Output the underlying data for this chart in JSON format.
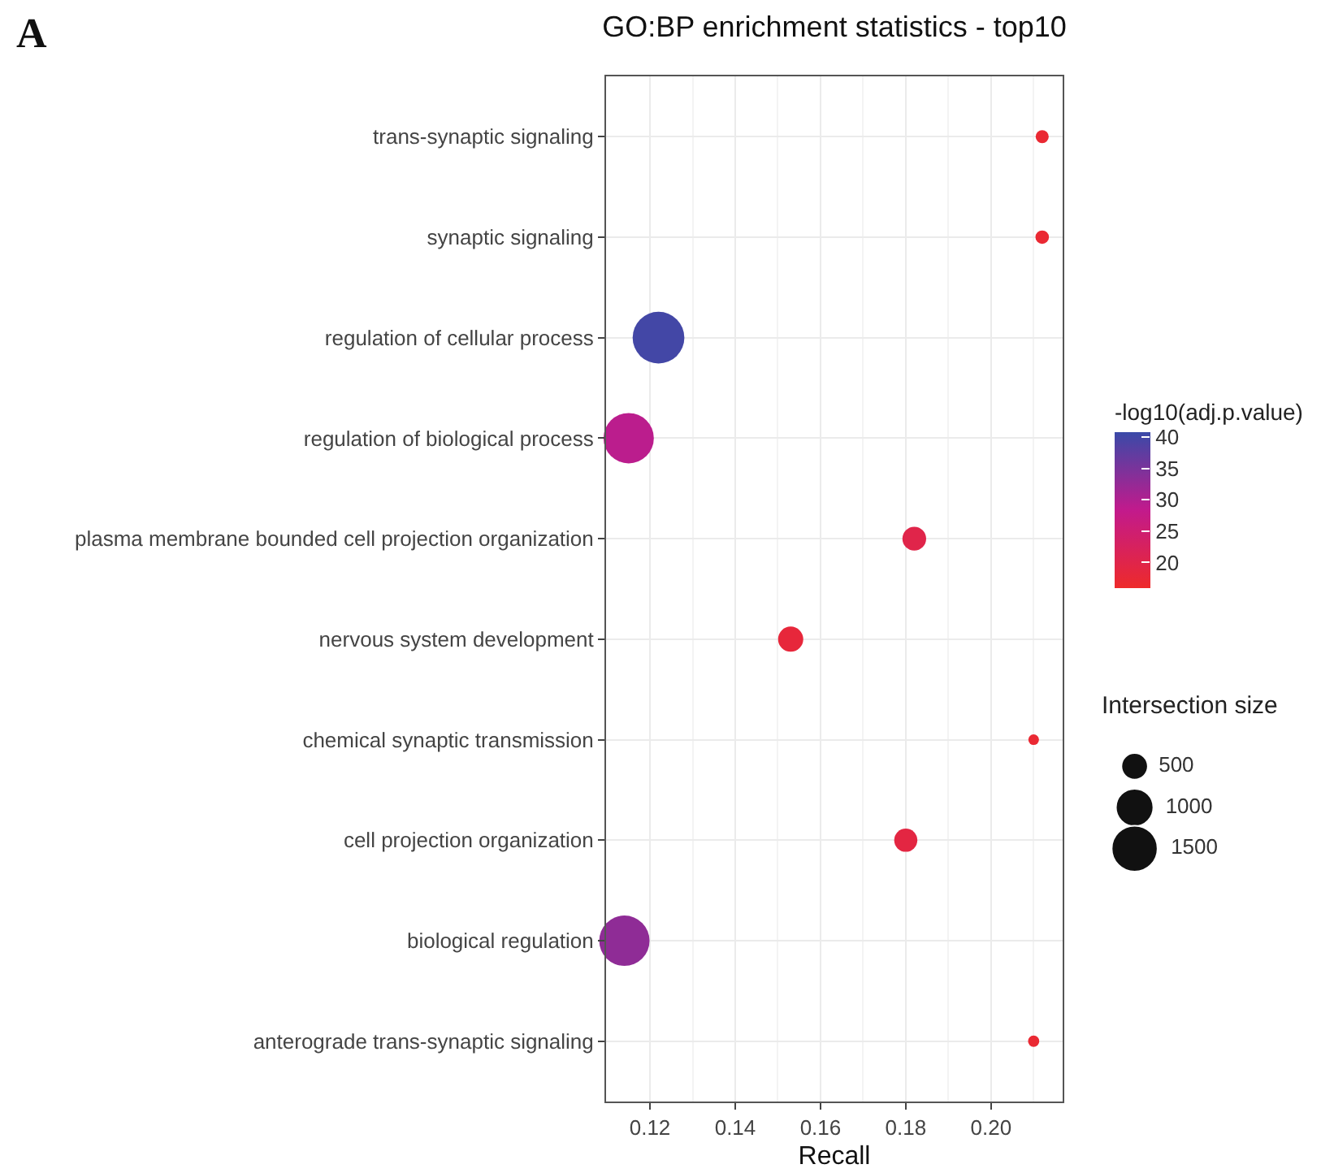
{
  "chart_data": {
    "type": "bubble",
    "title": "GO:BP enrichment statistics - top10",
    "xlabel": "Recall",
    "clabel": "-log10(adj.p.value)",
    "legend_title": "Intersection size",
    "annotations": [
      "A"
    ],
    "categories": [
      "trans-synaptic signaling",
      "synaptic signaling",
      "regulation of cellular process",
      "regulation of biological process",
      "plasma membrane bounded cell projection organization",
      "nervous system development",
      "chemical synaptic transmission",
      "cell projection organization",
      "biological regulation",
      "anterograde trans-synaptic signaling"
    ],
    "values": [
      0.212,
      0.212,
      0.122,
      0.115,
      0.182,
      0.153,
      0.21,
      0.18,
      0.114,
      0.21
    ],
    "sizes": [
      120,
      130,
      1900,
      1800,
      400,
      450,
      80,
      380,
      1800,
      90
    ],
    "size_legend": [
      500,
      1000,
      1500
    ],
    "cvalues": [
      17,
      17,
      40,
      29,
      20,
      18,
      17,
      19,
      33,
      17
    ],
    "clim": [
      15.9,
      40.8
    ],
    "cticks": [
      20,
      25,
      30,
      35,
      40
    ],
    "orientation": "horizontal",
    "xlim": [
      0.1097,
      0.2168
    ],
    "xticks": [
      0.12,
      0.14,
      0.16,
      0.18,
      {
        "value": 0.2,
        "label": "0.20"
      }
    ],
    "grid": true,
    "marker": "circle"
  }
}
